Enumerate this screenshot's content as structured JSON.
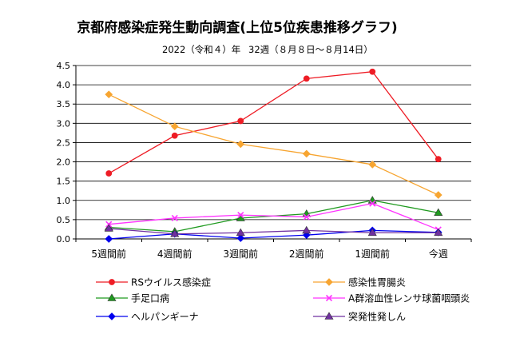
{
  "chart_data": {
    "type": "line",
    "title": "京都府感染症発生動向調査(上位5位疾患推移グラフ)",
    "subtitle_left": "2022（令和４）年",
    "subtitle_right": "32週（８月８日～８月14日）",
    "categories": [
      "5週間前",
      "4週間前",
      "3週間前",
      "2週間前",
      "1週間前",
      "今週"
    ],
    "y_ticks": [
      "0.0",
      "0.5",
      "1.0",
      "1.5",
      "2.0",
      "2.5",
      "3.0",
      "3.5",
      "4.0",
      "4.5"
    ],
    "ylim": [
      0,
      4.5
    ],
    "grid": true,
    "legend_position": "bottom",
    "series": [
      {
        "name": "RSウイルス感染症",
        "color": "#ee1c25",
        "marker": "circle",
        "values": [
          1.7,
          2.68,
          3.06,
          4.16,
          4.34,
          2.07
        ]
      },
      {
        "name": "感染性胃腸炎",
        "color": "#f7a531",
        "marker": "diamond",
        "values": [
          3.75,
          2.92,
          2.46,
          2.21,
          1.93,
          1.14
        ]
      },
      {
        "name": "手足口病",
        "color": "#1f9a1f",
        "marker": "triangle",
        "values": [
          0.3,
          0.19,
          0.54,
          0.65,
          1.0,
          0.68
        ]
      },
      {
        "name": "A群溶血性レンサ球菌咽頭炎",
        "color": "#ff33ff",
        "marker": "cross",
        "values": [
          0.38,
          0.54,
          0.62,
          0.57,
          0.92,
          0.24
        ]
      },
      {
        "name": "ヘルパンギーナ",
        "color": "#0000ee",
        "marker": "diamond",
        "values": [
          0.0,
          0.13,
          0.02,
          0.1,
          0.22,
          0.17
        ]
      },
      {
        "name": "突発性発しん",
        "color": "#7030a0",
        "marker": "triangle",
        "values": [
          0.27,
          0.13,
          0.16,
          0.22,
          0.16,
          0.16
        ]
      }
    ]
  }
}
